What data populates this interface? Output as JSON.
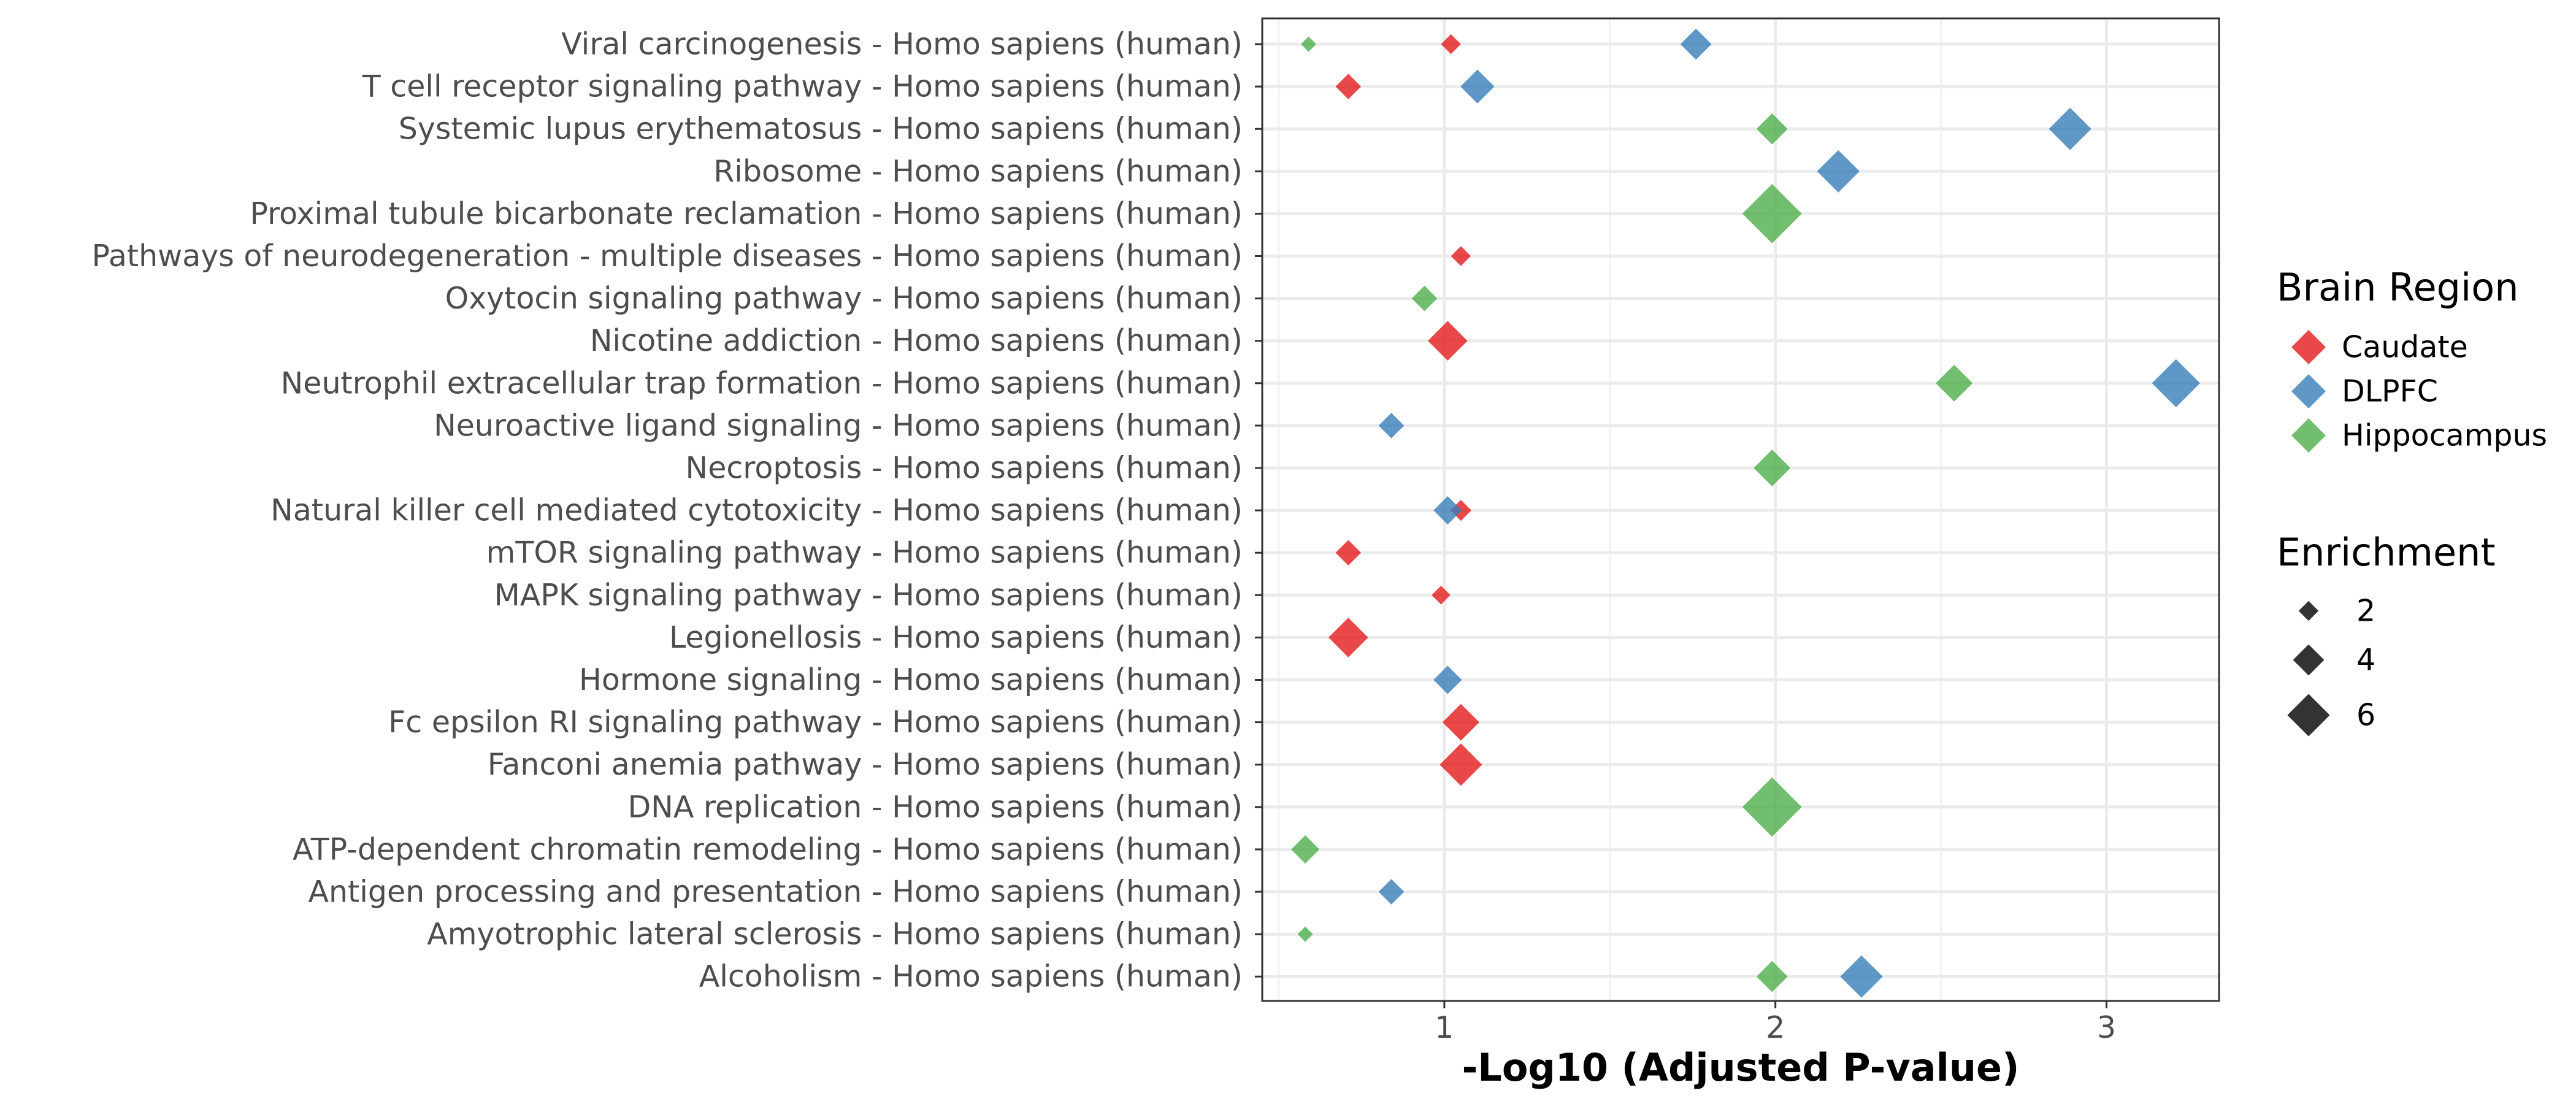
{
  "chart_data": {
    "type": "scatter",
    "xlabel": "-Log10 (Adjusted P-value)",
    "ylabel": "",
    "xlim": [
      0.45,
      3.34
    ],
    "xticks": [
      1,
      2,
      3
    ],
    "grid": true,
    "legend_position": "right",
    "categories": [
      "Viral carcinogenesis - Homo sapiens (human)",
      "T cell receptor signaling pathway - Homo sapiens (human)",
      "Systemic lupus erythematosus - Homo sapiens (human)",
      "Ribosome - Homo sapiens (human)",
      "Proximal tubule bicarbonate reclamation - Homo sapiens (human)",
      "Pathways of neurodegeneration - multiple diseases - Homo sapiens (human)",
      "Oxytocin signaling pathway - Homo sapiens (human)",
      "Nicotine addiction - Homo sapiens (human)",
      "Neutrophil extracellular trap formation - Homo sapiens (human)",
      "Neuroactive ligand signaling - Homo sapiens (human)",
      "Necroptosis - Homo sapiens (human)",
      "Natural killer cell mediated cytotoxicity - Homo sapiens (human)",
      "mTOR signaling pathway - Homo sapiens (human)",
      "MAPK signaling pathway - Homo sapiens (human)",
      "Legionellosis - Homo sapiens (human)",
      "Hormone signaling - Homo sapiens (human)",
      "Fc epsilon RI signaling pathway - Homo sapiens (human)",
      "Fanconi anemia pathway - Homo sapiens (human)",
      "DNA replication - Homo sapiens (human)",
      "ATP-dependent chromatin remodeling - Homo sapiens (human)",
      "Antigen processing and presentation - Homo sapiens (human)",
      "Amyotrophic lateral sclerosis - Homo sapiens (human)",
      "Alcoholism - Homo sapiens (human)"
    ],
    "series": [
      {
        "name": "Caudate",
        "color": "#e41a1c",
        "points": [
          {
            "category": "Viral carcinogenesis - Homo sapiens (human)",
            "x": 1.02,
            "enrichment": 2.0
          },
          {
            "category": "T cell receptor signaling pathway - Homo sapiens (human)",
            "x": 0.71,
            "enrichment": 3.0
          },
          {
            "category": "Pathways of neurodegeneration - multiple diseases - Homo sapiens (human)",
            "x": 1.05,
            "enrichment": 2.0
          },
          {
            "category": "Nicotine addiction - Homo sapiens (human)",
            "x": 1.01,
            "enrichment": 5.5
          },
          {
            "category": "Natural killer cell mediated cytotoxicity - Homo sapiens (human)",
            "x": 1.05,
            "enrichment": 2.2
          },
          {
            "category": "mTOR signaling pathway - Homo sapiens (human)",
            "x": 0.71,
            "enrichment": 3.0
          },
          {
            "category": "MAPK signaling pathway - Homo sapiens (human)",
            "x": 0.99,
            "enrichment": 1.8
          },
          {
            "category": "Legionellosis - Homo sapiens (human)",
            "x": 0.71,
            "enrichment": 5.5
          },
          {
            "category": "Fc epsilon RI signaling pathway - Homo sapiens (human)",
            "x": 1.05,
            "enrichment": 5.0
          },
          {
            "category": "Fanconi anemia pathway - Homo sapiens (human)",
            "x": 1.05,
            "enrichment": 6.0
          }
        ]
      },
      {
        "name": "DLPFC",
        "color": "#377eb8",
        "points": [
          {
            "category": "Viral carcinogenesis - Homo sapiens (human)",
            "x": 1.76,
            "enrichment": 4.0
          },
          {
            "category": "T cell receptor signaling pathway - Homo sapiens (human)",
            "x": 1.1,
            "enrichment": 4.5
          },
          {
            "category": "Systemic lupus erythematosus - Homo sapiens (human)",
            "x": 2.89,
            "enrichment": 6.0
          },
          {
            "category": "Ribosome - Homo sapiens (human)",
            "x": 2.19,
            "enrichment": 6.0
          },
          {
            "category": "Neutrophil extracellular trap formation - Homo sapiens (human)",
            "x": 3.21,
            "enrichment": 7.0
          },
          {
            "category": "Neuroactive ligand signaling - Homo sapiens (human)",
            "x": 0.84,
            "enrichment": 3.0
          },
          {
            "category": "Natural killer cell mediated cytotoxicity - Homo sapiens (human)",
            "x": 1.01,
            "enrichment": 3.5
          },
          {
            "category": "Hormone signaling - Homo sapiens (human)",
            "x": 1.01,
            "enrichment": 3.5
          },
          {
            "category": "Antigen processing and presentation - Homo sapiens (human)",
            "x": 0.84,
            "enrichment": 3.0
          },
          {
            "category": "Alcoholism - Homo sapiens (human)",
            "x": 2.26,
            "enrichment": 6.0
          }
        ]
      },
      {
        "name": "Hippocampus",
        "color": "#4daf4a",
        "points": [
          {
            "category": "Viral carcinogenesis - Homo sapiens (human)",
            "x": 0.59,
            "enrichment": 1.2
          },
          {
            "category": "Systemic lupus erythematosus - Homo sapiens (human)",
            "x": 1.99,
            "enrichment": 4.0
          },
          {
            "category": "Proximal tubule bicarbonate reclamation - Homo sapiens (human)",
            "x": 1.99,
            "enrichment": 9.0
          },
          {
            "category": "Oxytocin signaling pathway - Homo sapiens (human)",
            "x": 0.94,
            "enrichment": 3.0
          },
          {
            "category": "Neutrophil extracellular trap formation - Homo sapiens (human)",
            "x": 2.54,
            "enrichment": 5.0
          },
          {
            "category": "Necroptosis - Homo sapiens (human)",
            "x": 1.99,
            "enrichment": 5.0
          },
          {
            "category": "DNA replication - Homo sapiens (human)",
            "x": 1.99,
            "enrichment": 9.0
          },
          {
            "category": "ATP-dependent chromatin remodeling - Homo sapiens (human)",
            "x": 0.58,
            "enrichment": 3.5
          },
          {
            "category": "Amyotrophic lateral sclerosis - Homo sapiens (human)",
            "x": 0.58,
            "enrichment": 1.2
          },
          {
            "category": "Alcoholism - Homo sapiens (human)",
            "x": 1.99,
            "enrichment": 4.0
          }
        ]
      }
    ],
    "legend_color": {
      "title": "Brain Region",
      "items": [
        "Caudate",
        "DLPFC",
        "Hippocampus"
      ]
    },
    "legend_size": {
      "title": "Enrichment",
      "items": [
        {
          "label": "2",
          "value": 2
        },
        {
          "label": "4",
          "value": 4
        },
        {
          "label": "6",
          "value": 6
        }
      ]
    },
    "legend_size_color": "#333333"
  }
}
